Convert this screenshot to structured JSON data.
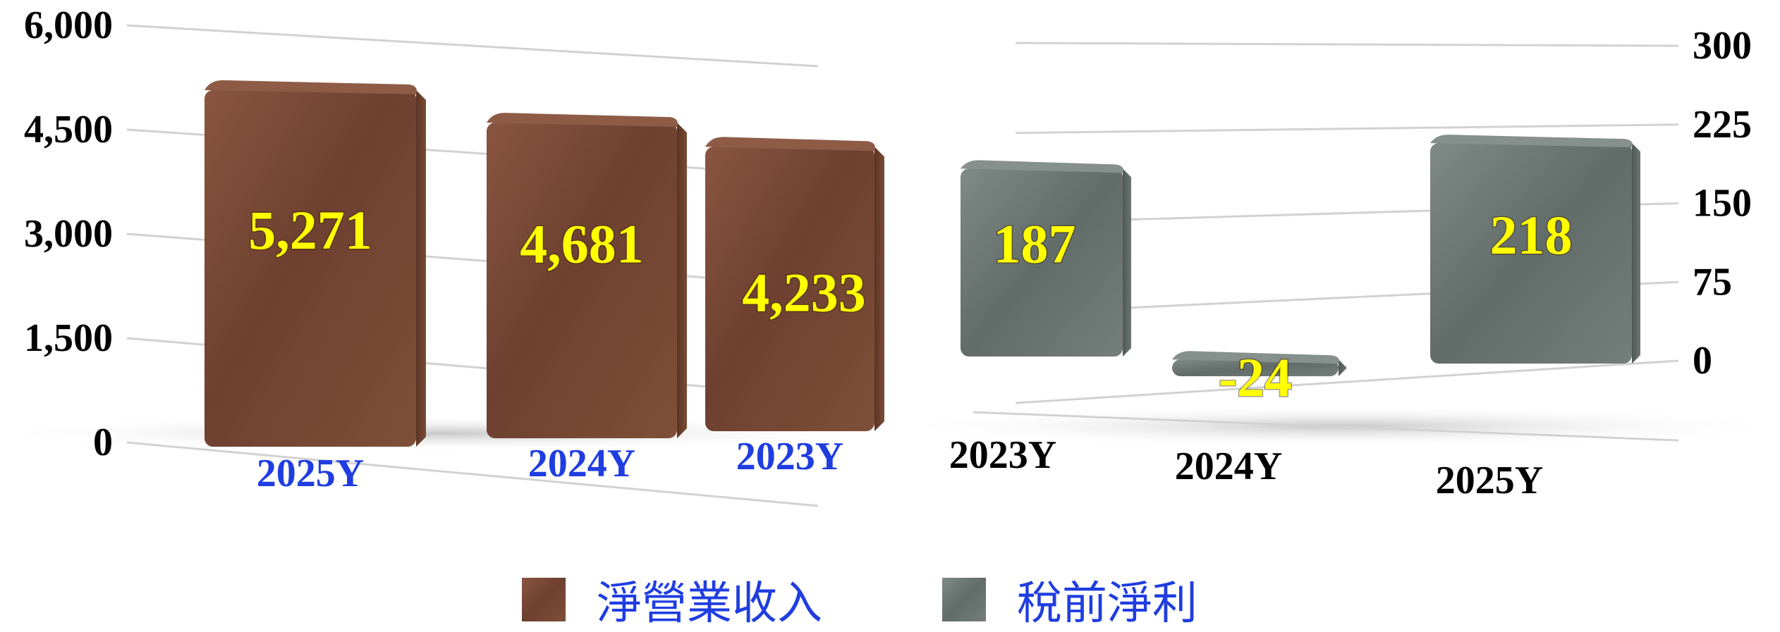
{
  "chart_data": [
    {
      "type": "bar",
      "categories": [
        "2025Y",
        "2024Y",
        "2023Y"
      ],
      "series": [
        {
          "name": "淨營業收入",
          "values": [
            5271,
            4681,
            4233
          ]
        }
      ],
      "data_labels": [
        "5,271",
        "4,681",
        "4,233"
      ],
      "y_ticks": [
        "0",
        "1,500",
        "3,000",
        "4,500",
        "6,000"
      ],
      "ylim": [
        0,
        6000
      ],
      "grid": true,
      "axis_side": "left",
      "color": "#7a4a36"
    },
    {
      "type": "bar",
      "categories": [
        "2023Y",
        "2024Y",
        "2025Y"
      ],
      "series": [
        {
          "name": "稅前淨利",
          "values": [
            187,
            -24,
            218
          ]
        }
      ],
      "data_labels": [
        "187",
        "-24",
        "218"
      ],
      "y_ticks": [
        "0",
        "75",
        "150",
        "225",
        "300"
      ],
      "ylim": [
        0,
        300
      ],
      "grid": true,
      "axis_side": "right",
      "color": "#6f7773"
    }
  ],
  "legend": {
    "placement": "bottom",
    "items": [
      {
        "label": "淨營業收入",
        "color": "#7a4a36"
      },
      {
        "label": "稅前淨利",
        "color": "#6f7773"
      }
    ]
  },
  "colors": {
    "category_left": "#1f3de0",
    "category_right": "#000000",
    "data_label": "#ffff00"
  }
}
